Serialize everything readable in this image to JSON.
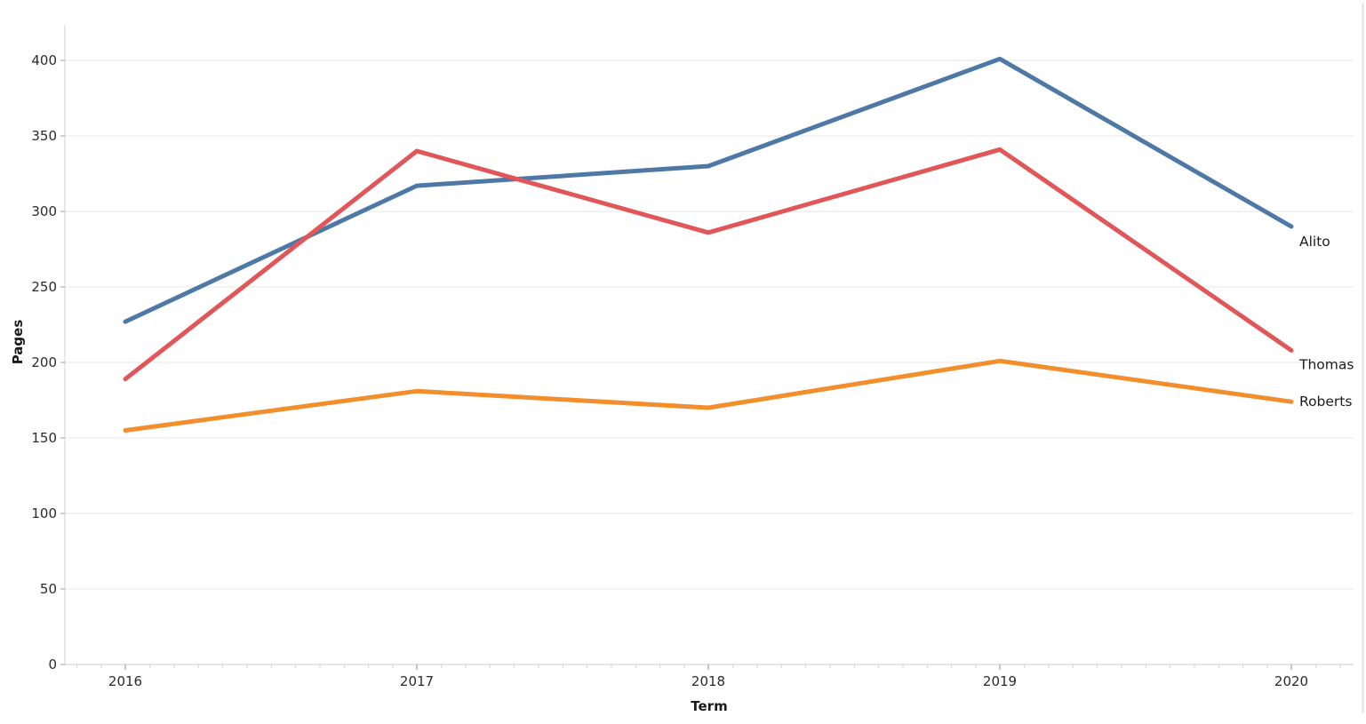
{
  "chart_data": {
    "type": "line",
    "title": "",
    "xlabel": "Term",
    "ylabel": "Pages",
    "x": [
      2016,
      2017,
      2018,
      2019,
      2020
    ],
    "x_tick_labels": [
      "2016",
      "2017",
      "2018",
      "2019",
      "2020"
    ],
    "y_ticks": [
      0,
      50,
      100,
      150,
      200,
      250,
      300,
      350,
      400
    ],
    "y_tick_labels": [
      "0",
      "50",
      "100",
      "150",
      "200",
      "250",
      "300",
      "350",
      "400"
    ],
    "ylim": [
      0,
      424
    ],
    "grid": "horizontal-only",
    "legend": "direct-line-end-labels",
    "x_minor_ticks_per_interval": 12,
    "series": [
      {
        "name": "Alito",
        "color": "#4e79a7",
        "values": [
          227,
          317,
          330,
          401,
          290
        ]
      },
      {
        "name": "Thomas",
        "color": "#e15759",
        "values": [
          189,
          340,
          286,
          341,
          208
        ]
      },
      {
        "name": "Roberts",
        "color": "#f28e2b",
        "values": [
          155,
          181,
          170,
          201,
          174
        ]
      }
    ]
  },
  "style": {
    "grid_color": "#ececec",
    "axis_line_color": "#d9d9d9",
    "major_tick_color": "#b0b0b0",
    "minor_tick_color": "#d5d5d5",
    "right_border_color": "#e2e2e2",
    "background": "#ffffff"
  }
}
